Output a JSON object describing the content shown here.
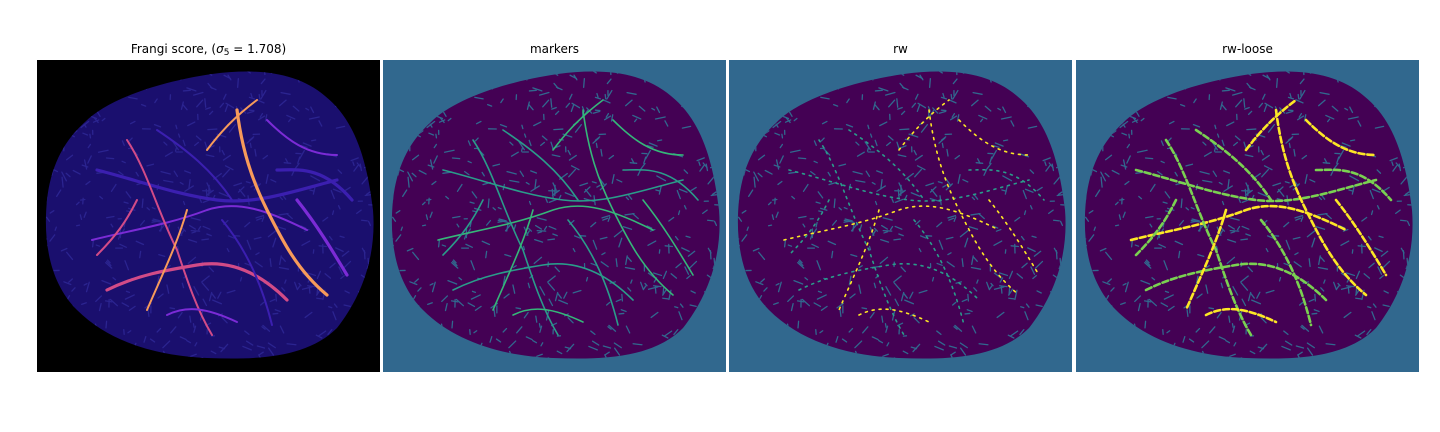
{
  "figure": {
    "panels": [
      {
        "title_prefix": "Frangi score, (",
        "title_sigma": "σ",
        "title_sub": "5",
        "title_rest": " = 1.708)",
        "background": "#000000",
        "tissue_color": "#1a0f6e",
        "vessel_colors": [
          "#3b1fb0",
          "#7b2bd6",
          "#d24b87",
          "#f79a5a"
        ]
      },
      {
        "title": "markers",
        "background": "#31688e",
        "tissue_color": "#440154",
        "vessel_colors": [
          "#2a9c8a",
          "#35b779"
        ]
      },
      {
        "title": "rw",
        "background": "#31688e",
        "tissue_color": "#440154",
        "vessel_colors": [
          "#2a9c8a",
          "#fde725"
        ]
      },
      {
        "title": "rw-loose",
        "background": "#31688e",
        "tissue_color": "#440154",
        "vessel_colors": [
          "#7ad151",
          "#fde725"
        ]
      }
    ]
  }
}
